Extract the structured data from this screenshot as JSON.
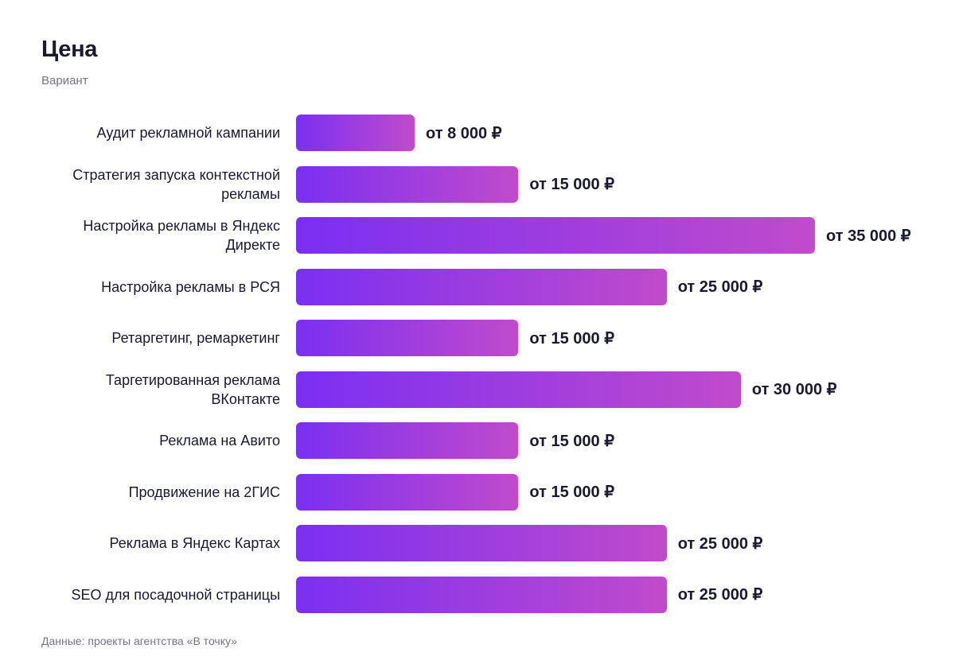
{
  "chart_data": {
    "type": "bar",
    "orientation": "horizontal",
    "title": "Цена",
    "subtitle": "Вариант",
    "categories": [
      "Аудит рекламной кампании",
      "Стратегия запуска контекстной рекламы",
      "Настройка рекламы в Яндекс Директе",
      "Настройка рекламы в РСЯ",
      "Ретаргетинг, ремаркетинг",
      "Таргетированная реклама ВКонтакте",
      "Реклама на Авито",
      "Продвижение на 2ГИС",
      "Реклама в Яндекс Картах",
      "SEO для посадочной страницы"
    ],
    "values": [
      8000,
      15000,
      35000,
      25000,
      15000,
      30000,
      15000,
      15000,
      25000,
      25000
    ],
    "value_labels": [
      "от 8 000 ₽",
      "от 15 000 ₽",
      "от 35 000 ₽",
      "от 25 000 ₽",
      "от 15 000 ₽",
      "от 30 000 ₽",
      "от 15 000 ₽",
      "от 15 000 ₽",
      "от 25 000 ₽",
      "от 25 000 ₽"
    ],
    "gradient": [
      "#7b2ff2",
      "#c04bcb"
    ],
    "source": "Данные: проекты агентства «В точку»"
  }
}
